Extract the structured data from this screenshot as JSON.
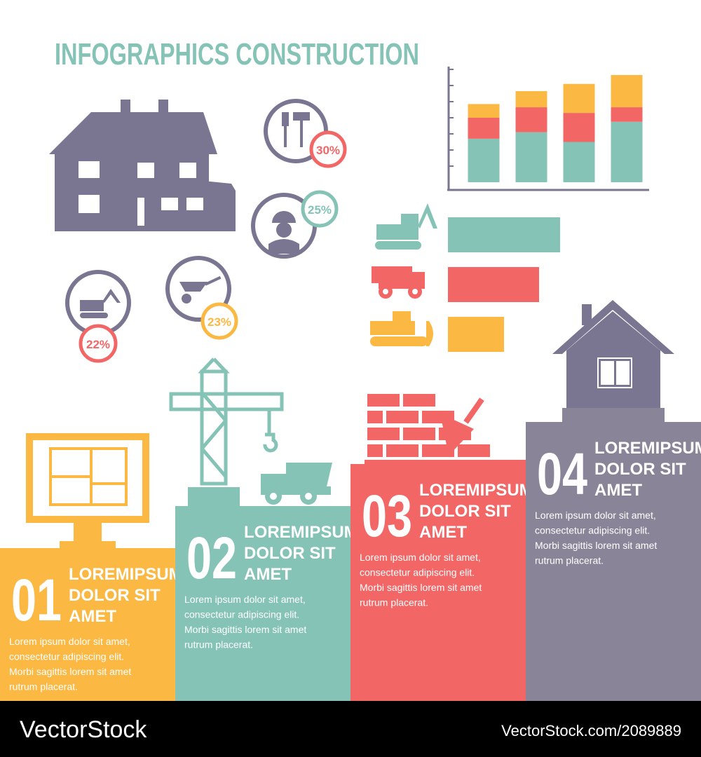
{
  "title": "INFOGRAPHICS CONSTRUCTION",
  "percent_badges": [
    "30%",
    "25%",
    "23%",
    "22%"
  ],
  "stacked_chart": {
    "type": "bar",
    "stacked": true,
    "categories": [
      null,
      null,
      null,
      null
    ],
    "series": [
      {
        "color": "#84c3b6",
        "values": [
          2.7,
          3.1,
          2.5,
          3.75
        ]
      },
      {
        "color": "#f26666",
        "values": [
          1.3,
          1.55,
          1.8,
          0.9
        ]
      },
      {
        "color": "#fbb843",
        "values": [
          0.85,
          1.0,
          1.8,
          2.0
        ]
      }
    ],
    "ylim": [
      0,
      7
    ],
    "yticks": [
      1,
      2,
      3,
      4,
      5,
      6,
      7
    ]
  },
  "bar_chart": {
    "type": "bar",
    "horizontal": true,
    "values": [
      8,
      6.5,
      4
    ],
    "colors": [
      "#84c3b6",
      "#f26666",
      "#fbb843"
    ],
    "xlim": [
      0,
      10
    ]
  },
  "steps": [
    {
      "number": "01",
      "title": [
        "LOREMIPSUM",
        "DOLOR SIT",
        "AMET"
      ],
      "body": [
        "Lorem ipsum dolor sit amet,",
        "consectetur adipiscing elit.",
        "Morbi sagittis lorem sit amet",
        "rutrum placerat."
      ],
      "color": "#fbb843"
    },
    {
      "number": "02",
      "title": [
        "LOREMIPSUM",
        "DOLOR SIT",
        "AMET"
      ],
      "body": [
        "Lorem ipsum dolor sit amet,",
        "consectetur adipiscing elit.",
        "Morbi sagittis lorem sit amet",
        "rutrum placerat."
      ],
      "color": "#84c3b6"
    },
    {
      "number": "03",
      "title": [
        "LOREMIPSUM",
        "DOLOR SIT",
        "AMET"
      ],
      "body": [
        "Lorem ipsum dolor sit amet,",
        "consectetur adipiscing elit.",
        "Morbi sagittis lorem sit amet",
        "rutrum placerat."
      ],
      "color": "#f26666"
    },
    {
      "number": "04",
      "title": [
        "LOREMIPSUM",
        "DOLOR SIT",
        "AMET"
      ],
      "body": [
        "Lorem ipsum dolor sit amet,",
        "consectetur adipiscing elit.",
        "Morbi sagittis lorem sit amet",
        "rutrum placerat."
      ],
      "color": "#8a8499"
    }
  ],
  "footer": {
    "brand": "VectorStock",
    "url": "VectorStock.com/2089889"
  }
}
